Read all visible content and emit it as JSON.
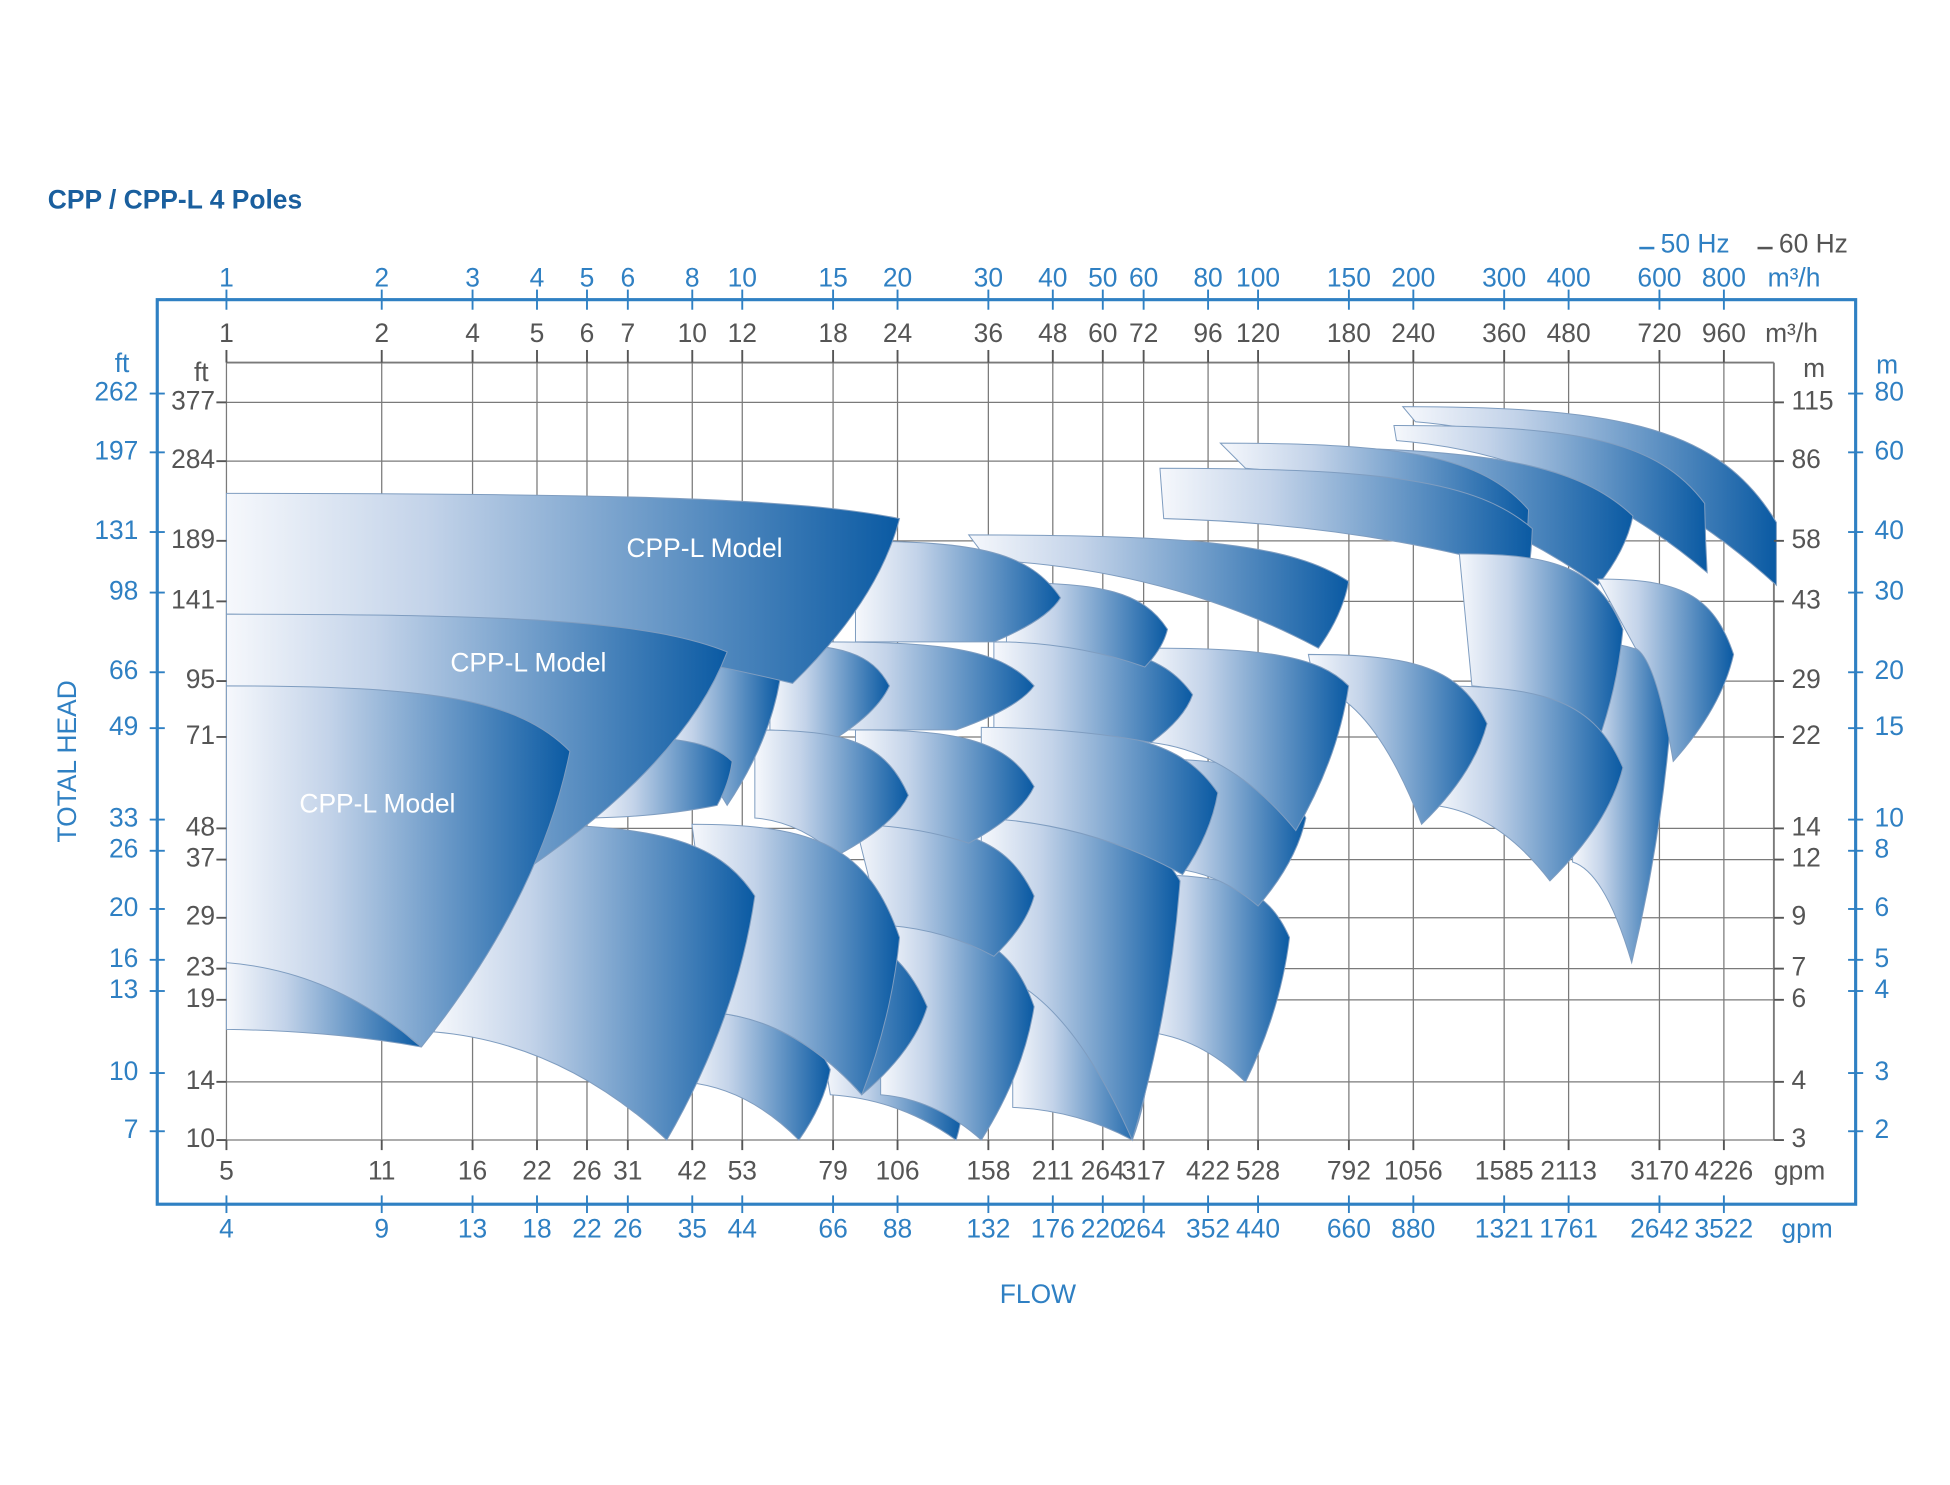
{
  "chart_data": {
    "type": "pump-coverage",
    "title": "CPP / CPP-L 4 Poles",
    "legend": [
      {
        "name": "50 Hz",
        "color": "#2f80c3"
      },
      {
        "name": "60 Hz",
        "color": "#555555"
      }
    ],
    "x_label": "FLOW",
    "y_label": "TOTAL HEAD",
    "log_x": true,
    "log_y": true,
    "grid": true,
    "xlim": [
      1,
      1000
    ],
    "xticks": [
      1,
      2,
      3,
      4,
      5,
      6,
      8,
      10,
      15,
      20,
      30,
      40,
      50,
      60,
      80,
      100,
      150,
      200,
      300,
      400,
      600,
      800
    ],
    "x_unit": "m³/h",
    "x_labels_60hz": [
      1,
      2,
      4,
      5,
      6,
      7,
      10,
      12,
      18,
      24,
      36,
      48,
      60,
      72,
      96,
      120,
      180,
      240,
      360,
      480,
      720,
      960
    ],
    "x_unit_60hz": "m³/h",
    "x_labels_gpm_60hz": [
      5,
      11,
      16,
      22,
      26,
      31,
      42,
      53,
      79,
      106,
      158,
      211,
      264,
      317,
      422,
      528,
      792,
      1056,
      1585,
      2113,
      3170,
      4226
    ],
    "x_unit_gpm_60hz": "gpm",
    "x_labels_gpm_50hz": [
      4,
      9,
      13,
      18,
      22,
      26,
      35,
      44,
      66,
      88,
      132,
      176,
      220,
      264,
      352,
      440,
      660,
      880,
      1321,
      1761,
      2642,
      3522
    ],
    "x_unit_gpm_50hz": "gpm",
    "ylim": [
      3,
      140
    ],
    "yticks": [
      115,
      86,
      58,
      43,
      29,
      22,
      14,
      12,
      9,
      7,
      6,
      4,
      3
    ],
    "y_unit": "m",
    "y_labels_ft_60hz": [
      377,
      284,
      189,
      141,
      95,
      71,
      48,
      37,
      29,
      23,
      19,
      14,
      10
    ],
    "y_unit_ft_60hz": "ft",
    "y_labels_m_50hz": [
      80,
      60,
      40,
      30,
      20,
      15,
      10,
      8,
      6,
      5,
      4,
      3,
      2
    ],
    "y_unit_m_50hz": "m",
    "y_labels_ft_50hz": [
      262,
      197,
      131,
      98,
      66,
      49,
      33,
      26,
      20,
      16,
      13,
      10,
      7
    ],
    "y_unit_ft_50hz": "ft",
    "annotations": [
      "CPP-L Model",
      "CPP-L Model",
      "CPP-L Model"
    ]
  }
}
